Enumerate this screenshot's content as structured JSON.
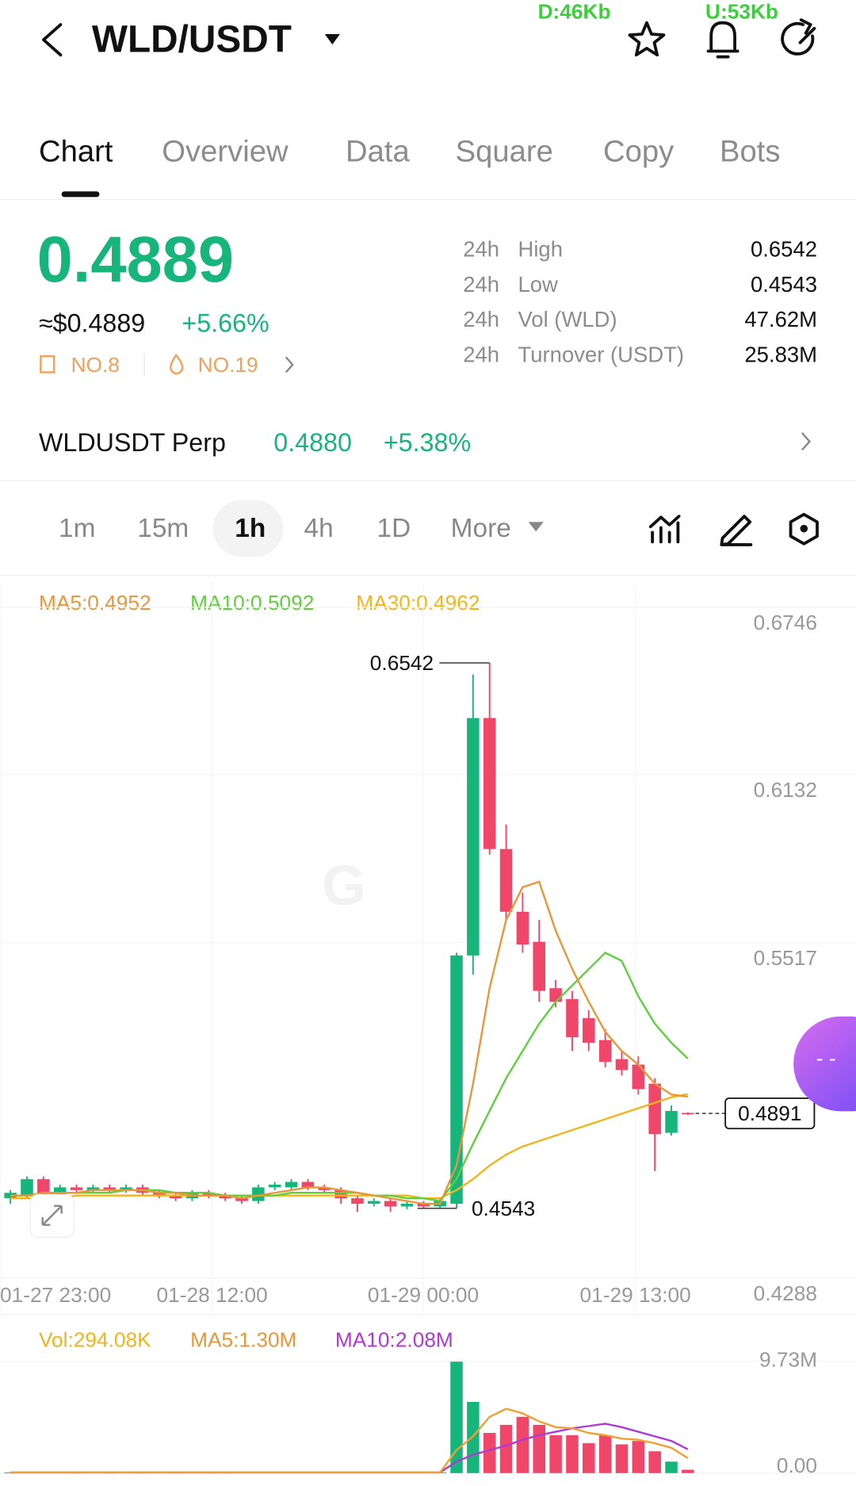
{
  "status": {
    "download": "D:46Kb",
    "upload": "U:53Kb"
  },
  "header": {
    "pair": "WLD/USDT"
  },
  "tabs": [
    "Chart",
    "Overview",
    "Data",
    "Square",
    "Copy",
    "Bots"
  ],
  "ticker": {
    "price": "0.4889",
    "usd": "≈$0.4889",
    "change": "+5.66%",
    "rank1": "NO.8",
    "rank2": "NO.19",
    "stats": [
      [
        "24h",
        "High",
        "0.6542"
      ],
      [
        "24h",
        "Low",
        "0.4543"
      ],
      [
        "24h",
        "Vol (WLD)",
        "47.62M"
      ],
      [
        "24h",
        "Turnover (USDT)",
        "25.83M"
      ]
    ]
  },
  "perp": {
    "name": "WLDUSDT Perp",
    "price": "0.4880",
    "change": "+5.38%"
  },
  "intervals": [
    "1m",
    "15m",
    "1h",
    "4h",
    "1D",
    "More"
  ],
  "chart_data": {
    "type": "candlestick",
    "ma_labels": [
      "MA5:0.4952",
      "MA10:0.5092",
      "MA30:0.4962"
    ],
    "time_labels": [
      "01-27 23:00",
      "01-28 12:00",
      "01-29 00:00",
      "01-29 13:00"
    ],
    "ylim": [
      0.4288,
      0.6746
    ],
    "yticks": [
      0.6746,
      0.6132,
      0.5517,
      0.4288
    ],
    "last_price": 0.4891,
    "up_color": "#17b57c",
    "down_color": "#f0466a",
    "candles": [
      {
        "open": 0.458,
        "high": 0.461,
        "low": 0.456,
        "close": 0.46
      },
      {
        "open": 0.459,
        "high": 0.466,
        "low": 0.458,
        "close": 0.465
      },
      {
        "open": 0.465,
        "high": 0.466,
        "low": 0.458,
        "close": 0.459
      },
      {
        "open": 0.459,
        "high": 0.463,
        "low": 0.458,
        "close": 0.462
      },
      {
        "open": 0.462,
        "high": 0.463,
        "low": 0.46,
        "close": 0.461
      },
      {
        "open": 0.461,
        "high": 0.463,
        "low": 0.46,
        "close": 0.462
      },
      {
        "open": 0.462,
        "high": 0.463,
        "low": 0.46,
        "close": 0.461
      },
      {
        "open": 0.461,
        "high": 0.463,
        "low": 0.46,
        "close": 0.462
      },
      {
        "open": 0.462,
        "high": 0.463,
        "low": 0.459,
        "close": 0.46
      },
      {
        "open": 0.46,
        "high": 0.461,
        "low": 0.458,
        "close": 0.459
      },
      {
        "open": 0.459,
        "high": 0.46,
        "low": 0.457,
        "close": 0.458
      },
      {
        "open": 0.458,
        "high": 0.461,
        "low": 0.457,
        "close": 0.46
      },
      {
        "open": 0.46,
        "high": 0.461,
        "low": 0.458,
        "close": 0.459
      },
      {
        "open": 0.459,
        "high": 0.46,
        "low": 0.457,
        "close": 0.458
      },
      {
        "open": 0.458,
        "high": 0.459,
        "low": 0.456,
        "close": 0.457
      },
      {
        "open": 0.457,
        "high": 0.463,
        "low": 0.456,
        "close": 0.462
      },
      {
        "open": 0.462,
        "high": 0.464,
        "low": 0.461,
        "close": 0.463
      },
      {
        "open": 0.462,
        "high": 0.465,
        "low": 0.461,
        "close": 0.464
      },
      {
        "open": 0.464,
        "high": 0.465,
        "low": 0.461,
        "close": 0.462
      },
      {
        "open": 0.462,
        "high": 0.463,
        "low": 0.46,
        "close": 0.461
      },
      {
        "open": 0.461,
        "high": 0.462,
        "low": 0.456,
        "close": 0.458
      },
      {
        "open": 0.458,
        "high": 0.459,
        "low": 0.453,
        "close": 0.456
      },
      {
        "open": 0.456,
        "high": 0.458,
        "low": 0.455,
        "close": 0.457
      },
      {
        "open": 0.457,
        "high": 0.458,
        "low": 0.453,
        "close": 0.455
      },
      {
        "open": 0.455,
        "high": 0.457,
        "low": 0.454,
        "close": 0.456
      },
      {
        "open": 0.456,
        "high": 0.457,
        "low": 0.4545,
        "close": 0.455
      },
      {
        "open": 0.455,
        "high": 0.458,
        "low": 0.4545,
        "close": 0.457
      },
      {
        "open": 0.456,
        "high": 0.548,
        "low": 0.4543,
        "close": 0.547
      },
      {
        "open": 0.547,
        "high": 0.65,
        "low": 0.54,
        "close": 0.634
      },
      {
        "open": 0.634,
        "high": 0.6542,
        "low": 0.584,
        "close": 0.586
      },
      {
        "open": 0.586,
        "high": 0.595,
        "low": 0.56,
        "close": 0.563
      },
      {
        "open": 0.563,
        "high": 0.57,
        "low": 0.548,
        "close": 0.551
      },
      {
        "open": 0.552,
        "high": 0.56,
        "low": 0.53,
        "close": 0.534
      },
      {
        "open": 0.535,
        "high": 0.538,
        "low": 0.528,
        "close": 0.53
      },
      {
        "open": 0.531,
        "high": 0.534,
        "low": 0.512,
        "close": 0.517
      },
      {
        "open": 0.524,
        "high": 0.527,
        "low": 0.512,
        "close": 0.515
      },
      {
        "open": 0.516,
        "high": 0.52,
        "low": 0.506,
        "close": 0.508
      },
      {
        "open": 0.509,
        "high": 0.512,
        "low": 0.503,
        "close": 0.505
      },
      {
        "open": 0.507,
        "high": 0.51,
        "low": 0.496,
        "close": 0.498
      },
      {
        "open": 0.5,
        "high": 0.502,
        "low": 0.468,
        "close": 0.4815
      },
      {
        "open": 0.482,
        "high": 0.492,
        "low": 0.481,
        "close": 0.49
      },
      {
        "open": 0.4893,
        "high": 0.4895,
        "low": 0.4885,
        "close": 0.4889
      }
    ],
    "ma5": [
      0.459,
      0.459,
      0.46,
      0.46,
      0.46,
      0.461,
      0.461,
      0.461,
      0.461,
      0.46,
      0.46,
      0.459,
      0.459,
      0.459,
      0.458,
      0.459,
      0.46,
      0.461,
      0.462,
      0.462,
      0.461,
      0.46,
      0.459,
      0.458,
      0.457,
      0.456,
      0.456,
      0.47,
      0.5,
      0.535,
      0.56,
      0.572,
      0.574,
      0.556,
      0.542,
      0.53,
      0.519,
      0.512,
      0.507,
      0.5,
      0.496,
      0.4952
    ],
    "ma10": [
      0.459,
      0.459,
      0.459,
      0.46,
      0.46,
      0.46,
      0.46,
      0.461,
      0.461,
      0.461,
      0.46,
      0.46,
      0.46,
      0.459,
      0.459,
      0.459,
      0.459,
      0.46,
      0.46,
      0.46,
      0.46,
      0.46,
      0.459,
      0.459,
      0.458,
      0.458,
      0.457,
      0.465,
      0.478,
      0.49,
      0.502,
      0.512,
      0.522,
      0.53,
      0.536,
      0.542,
      0.548,
      0.545,
      0.532,
      0.522,
      0.515,
      0.5092
    ],
    "ma30": [
      0.458,
      0.458,
      0.458,
      0.458,
      0.459,
      0.459,
      0.459,
      0.459,
      0.459,
      0.459,
      0.459,
      0.459,
      0.459,
      0.459,
      0.459,
      0.459,
      0.459,
      0.459,
      0.459,
      0.459,
      0.459,
      0.459,
      0.459,
      0.459,
      0.459,
      0.458,
      0.458,
      0.461,
      0.465,
      0.47,
      0.474,
      0.477,
      0.479,
      0.481,
      0.483,
      0.485,
      0.487,
      0.489,
      0.491,
      0.493,
      0.495,
      0.4962
    ],
    "volume_labels": [
      "Vol:294.08K",
      "MA5:1.30M",
      "MA10:2.08M"
    ],
    "vol_ylim": [
      0,
      9.73
    ],
    "vol_yticks": [
      {
        "value": 9.73,
        "label": "9.73M"
      },
      {
        "value": 0,
        "label": "0.00"
      }
    ],
    "volume": [
      0.05,
      0.08,
      0.06,
      0.05,
      0.04,
      0.05,
      0.04,
      0.05,
      0.04,
      0.05,
      0.04,
      0.05,
      0.04,
      0.04,
      0.05,
      0.08,
      0.06,
      0.07,
      0.06,
      0.05,
      0.06,
      0.07,
      0.05,
      0.06,
      0.05,
      0.05,
      0.06,
      9.7,
      6.2,
      3.5,
      4.2,
      4.9,
      4.2,
      3.3,
      3.3,
      2.6,
      3.3,
      2.5,
      2.8,
      1.9,
      1.0,
      0.29408
    ],
    "vol_ma5": [
      0.06,
      0.06,
      0.06,
      0.06,
      0.06,
      0.06,
      0.06,
      0.06,
      0.06,
      0.06,
      0.06,
      0.06,
      0.06,
      0.06,
      0.06,
      0.06,
      0.06,
      0.06,
      0.06,
      0.06,
      0.06,
      0.06,
      0.06,
      0.06,
      0.06,
      0.06,
      0.06,
      2.0,
      3.2,
      4.9,
      5.6,
      5.2,
      4.5,
      4.0,
      3.9,
      3.5,
      3.3,
      3.0,
      2.9,
      2.6,
      2.2,
      1.3
    ],
    "vol_ma10": [
      0.06,
      0.06,
      0.06,
      0.06,
      0.06,
      0.06,
      0.06,
      0.06,
      0.06,
      0.06,
      0.06,
      0.06,
      0.06,
      0.06,
      0.06,
      0.06,
      0.06,
      0.06,
      0.06,
      0.06,
      0.06,
      0.06,
      0.06,
      0.06,
      0.06,
      0.06,
      0.06,
      1.0,
      1.6,
      2.0,
      2.4,
      2.9,
      3.3,
      3.6,
      3.9,
      4.1,
      4.3,
      4.0,
      3.6,
      3.2,
      2.8,
      2.08
    ]
  }
}
